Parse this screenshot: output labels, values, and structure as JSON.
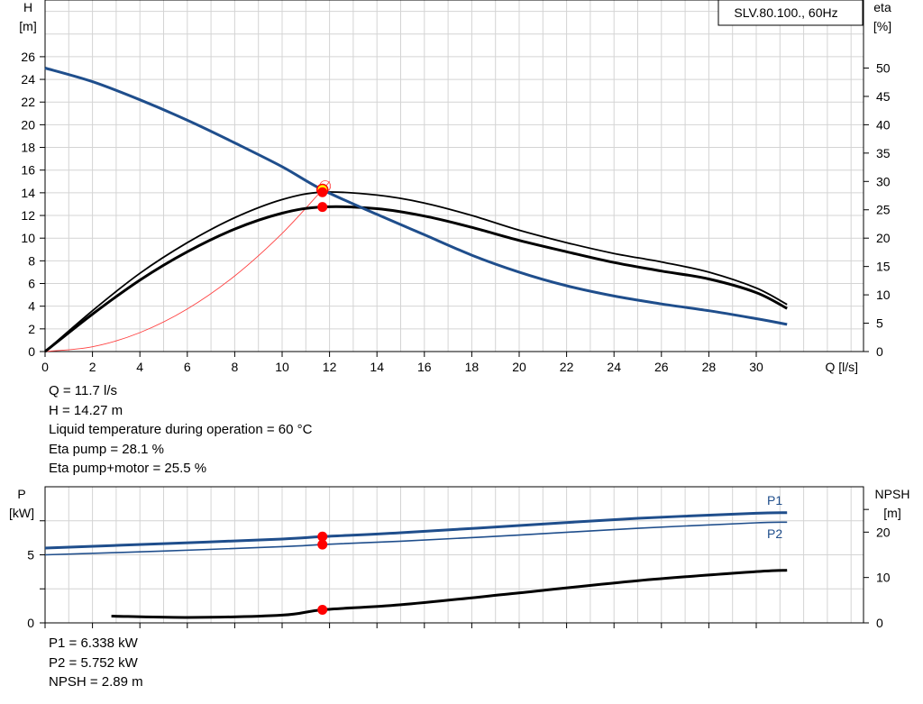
{
  "chart_data": [
    {
      "type": "line",
      "title": "SLV.80.100., 60Hz",
      "xlabel": "Q [l/s]",
      "ylabel": [
        "H",
        "[m]"
      ],
      "y2label": [
        "eta",
        "[%]"
      ],
      "x_ticks": [
        0,
        2,
        4,
        6,
        8,
        10,
        12,
        14,
        16,
        18,
        20,
        22,
        24,
        26,
        28,
        30
      ],
      "y_ticks": [
        0,
        2,
        4,
        6,
        8,
        10,
        12,
        14,
        16,
        18,
        20,
        22,
        24,
        26
      ],
      "y2_ticks": [
        0,
        5,
        10,
        15,
        20,
        25,
        30,
        35,
        40,
        45,
        50
      ],
      "xlim": [
        0,
        34
      ],
      "ylim": [
        0,
        31
      ],
      "y2lim": [
        0,
        62
      ],
      "grid": true,
      "colors": {
        "head": "#1f4e8c",
        "eta": "#000000",
        "system": "#ff4040",
        "duty_point": "#ff0000",
        "duty_fill": "#ffff00"
      },
      "series": [
        {
          "name": "H",
          "axis": "left",
          "x": [
            0,
            2,
            4,
            6,
            8,
            10,
            11.7,
            14,
            16,
            18,
            20,
            22,
            24,
            26,
            28,
            30,
            31.3
          ],
          "y": [
            25.0,
            23.8,
            22.2,
            20.4,
            18.4,
            16.3,
            14.27,
            12.1,
            10.3,
            8.5,
            7.0,
            5.8,
            4.9,
            4.2,
            3.6,
            2.9,
            2.4
          ]
        },
        {
          "name": "Eta pump",
          "axis": "right",
          "x": [
            0,
            2,
            4,
            6,
            8,
            10,
            11.7,
            14,
            16,
            18,
            20,
            22,
            24,
            26,
            28,
            30,
            31.3
          ],
          "y": [
            0,
            7.2,
            13.8,
            19.2,
            23.6,
            26.8,
            28.1,
            27.6,
            26.2,
            24.0,
            21.4,
            19.2,
            17.3,
            15.8,
            14.0,
            11.2,
            8.3
          ]
        },
        {
          "name": "Eta pump+motor",
          "axis": "right",
          "x": [
            0,
            2,
            4,
            6,
            8,
            10,
            11.7,
            14,
            16,
            18,
            20,
            22,
            24,
            26,
            28,
            30,
            31.3
          ],
          "y": [
            0,
            6.6,
            12.6,
            17.6,
            21.6,
            24.4,
            25.5,
            25.2,
            23.9,
            21.9,
            19.6,
            17.6,
            15.7,
            14.2,
            12.8,
            10.4,
            7.6
          ]
        },
        {
          "name": "System curve",
          "axis": "left",
          "x": [
            0,
            2,
            4,
            6,
            8,
            10,
            11.7,
            12
          ],
          "y": [
            0,
            0.42,
            1.67,
            3.75,
            6.67,
            10.42,
            14.27,
            15.0
          ]
        }
      ],
      "points": [
        {
          "name": "Duty point",
          "x": 11.7,
          "y": 14.27,
          "axis": "left"
        },
        {
          "name": "Eta pump point",
          "x": 11.7,
          "y": 28.1,
          "axis": "right"
        },
        {
          "name": "Eta pump+motor point",
          "x": 11.7,
          "y": 25.5,
          "axis": "right"
        }
      ]
    },
    {
      "type": "line",
      "ylabel": [
        "P",
        "[kW]"
      ],
      "y2label": [
        "NPSH",
        "[m]"
      ],
      "y_ticks": [
        0,
        5
      ],
      "y2_ticks": [
        0,
        10,
        20
      ],
      "xlim": [
        0,
        34
      ],
      "ylim": [
        0,
        10
      ],
      "y2lim": [
        0,
        30
      ],
      "grid": true,
      "series": [
        {
          "name": "P1",
          "axis": "left",
          "color": "#1f4e8c",
          "x": [
            0,
            5,
            10,
            11.7,
            15,
            20,
            25,
            30,
            31.3
          ],
          "y": [
            5.5,
            5.82,
            6.16,
            6.338,
            6.62,
            7.15,
            7.68,
            8.05,
            8.1
          ]
        },
        {
          "name": "P2",
          "axis": "left",
          "color": "#1f4e8c",
          "x": [
            0,
            5,
            10,
            11.7,
            15,
            20,
            25,
            30,
            31.3
          ],
          "y": [
            5.0,
            5.28,
            5.6,
            5.752,
            6.0,
            6.45,
            6.95,
            7.35,
            7.4
          ]
        },
        {
          "name": "NPSH",
          "axis": "right",
          "color": "#000000",
          "x": [
            2.8,
            6,
            10,
            11.7,
            15,
            20,
            25,
            30,
            31.3
          ],
          "y": [
            1.5,
            1.2,
            1.7,
            2.89,
            4.0,
            6.6,
            9.3,
            11.3,
            11.6
          ]
        }
      ],
      "points": [
        {
          "name": "P1 point",
          "x": 11.7,
          "y": 6.338,
          "axis": "left"
        },
        {
          "name": "P2 point",
          "x": 11.7,
          "y": 5.752,
          "axis": "left"
        },
        {
          "name": "NPSH point",
          "x": 11.7,
          "y": 2.89,
          "axis": "right"
        }
      ]
    }
  ],
  "info_top": {
    "q": "Q = 11.7 l/s",
    "h": "H = 14.27 m",
    "temp": "Liquid temperature during operation = 60 °C",
    "eta_pump": "Eta pump = 28.1 %",
    "eta_total": "Eta pump+motor = 25.5 %"
  },
  "info_bottom": {
    "p1": "P1 = 6.338 kW",
    "p2": "P2 = 5.752 kW",
    "npsh": "NPSH = 2.89 m"
  }
}
